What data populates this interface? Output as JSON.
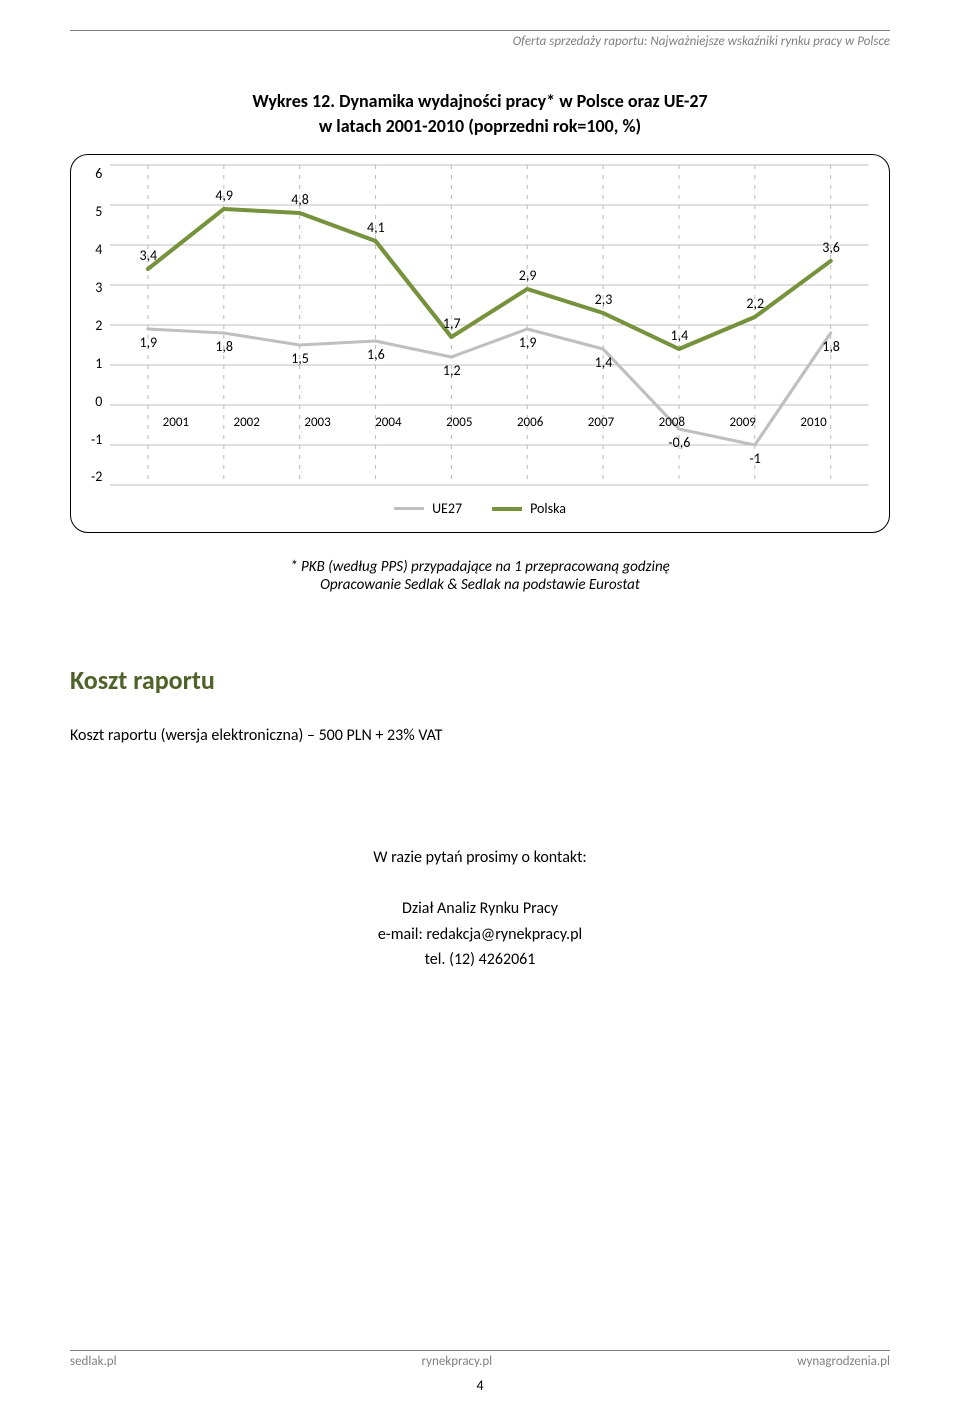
{
  "header": {
    "text": "Oferta sprzedaży raportu: Najważniejsze wskaźniki rynku pracy w Polsce"
  },
  "chart": {
    "type": "line",
    "title_line1": "Wykres 12. Dynamika wydajności pracy* w Polsce oraz UE-27",
    "title_line2": "w latach 2001-2010 (poprzedni rok=100, %)",
    "categories": [
      "2001",
      "2002",
      "2003",
      "2004",
      "2005",
      "2006",
      "2007",
      "2008",
      "2009",
      "2010"
    ],
    "y_ticks": [
      6,
      5,
      4,
      3,
      2,
      1,
      0,
      -1,
      -2
    ],
    "ylim_min": -2,
    "ylim_max": 6,
    "series": [
      {
        "name": "UE27",
        "color": "#bfbfbf",
        "width": 3,
        "values": [
          1.9,
          1.8,
          1.5,
          1.6,
          1.2,
          1.9,
          1.4,
          -0.6,
          -1,
          1.8
        ],
        "labels": [
          "1,9",
          "1,8",
          "1,5",
          "1,6",
          "1,2",
          "1,9",
          "1,4",
          "-0,6",
          "-1",
          "1,8"
        ],
        "label_positions": [
          "below",
          "below",
          "below",
          "below",
          "below",
          "below",
          "below",
          "below",
          "below",
          "below"
        ]
      },
      {
        "name": "Polska",
        "color": "#76923c",
        "width": 4,
        "values": [
          3.4,
          4.9,
          4.8,
          4.1,
          1.7,
          2.9,
          2.3,
          1.4,
          2.2,
          3.6
        ],
        "labels": [
          "3,4",
          "4,9",
          "4,8",
          "4,1",
          "1,7",
          "2,9",
          "2,3",
          "1,4",
          "2,2",
          "3,6"
        ],
        "label_positions": [
          "above",
          "above",
          "above",
          "above",
          "above",
          "above",
          "above",
          "above",
          "above",
          "above"
        ]
      }
    ],
    "background_color": "#ffffff",
    "grid_color": "#bfbfbf",
    "label_fontsize": 14,
    "footnote_line1": "* PKB (według PPS) przypadające na 1 przepracowaną godzinę",
    "footnote_line2": "Opracowanie Sedlak & Sedlak na podstawie Eurostat"
  },
  "section": {
    "heading": "Koszt raportu",
    "body": "Koszt raportu (wersja elektroniczna) – 500 PLN + 23% VAT"
  },
  "contact": {
    "intro": "W razie pytań prosimy o kontakt:",
    "dept": "Dział Analiz Rynku Pracy",
    "email": "e-mail: redakcja@rynekpracy.pl",
    "phone": "tel. (12) 4262061"
  },
  "footer": {
    "left": "sedlak.pl",
    "center": "rynekpracy.pl",
    "right": "wynagrodzenia.pl",
    "page": "4"
  }
}
